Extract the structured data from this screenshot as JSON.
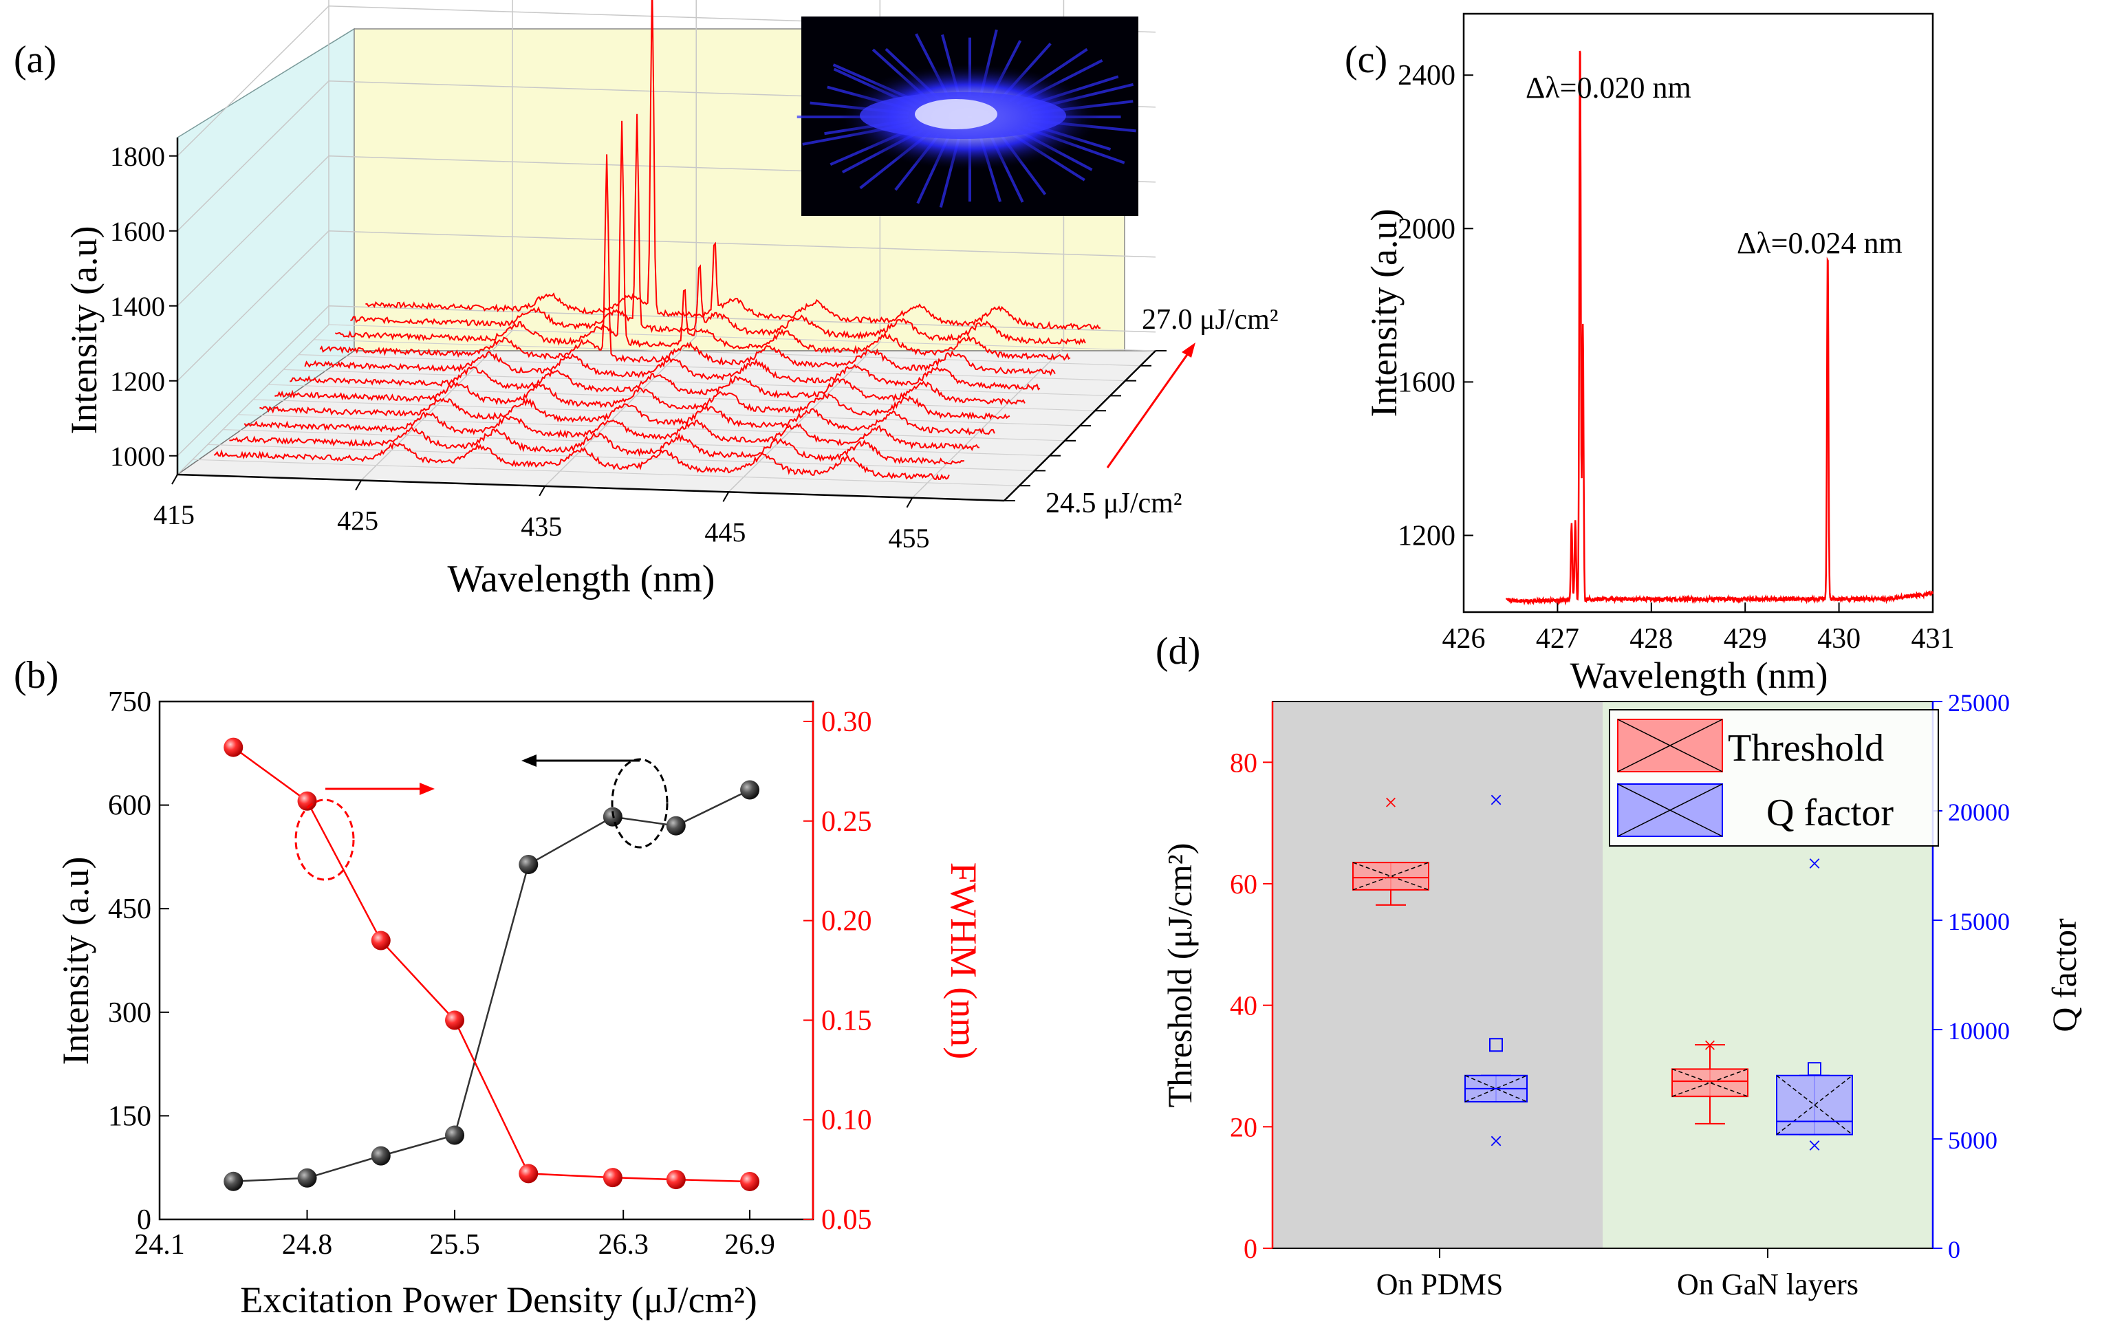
{
  "panel_labels": {
    "a": "(a)",
    "b": "(b)",
    "c": "(c)",
    "d": "(d)"
  },
  "colors": {
    "red": "#ff0000",
    "black": "#000000",
    "blue": "#0000ff",
    "panel_d_left_bg": "#d3d3d3",
    "panel_d_right_bg": "#e2f0dc",
    "back_wall": "#fafad2",
    "side_wall": "#dcf5f5"
  },
  "chart_data": [
    {
      "id": "a",
      "type": "line",
      "render": "3d-waterfall",
      "xlabel": "Wavelength (nm)",
      "ylabel": "Intensity (a.u)",
      "x_ticks": [
        "415",
        "425",
        "435",
        "445",
        "455"
      ],
      "xlim": [
        415,
        460
      ],
      "y_ticks": [
        "1000",
        "1200",
        "1400",
        "1600",
        "1800"
      ],
      "ylim": [
        950,
        1950
      ],
      "depth_label_low": "24.5 μJ/cm²",
      "depth_label_high": "27.0 μJ/cm²",
      "depth_range": [
        24.5,
        27.0
      ],
      "n_spectra": 11,
      "baseline": 1000,
      "broad_peaks_nm": [
        427,
        431.5,
        437,
        441.5,
        447,
        451.5
      ],
      "peaks": [
        {
          "series": 7,
          "x": 432.6,
          "y": 1530
        },
        {
          "series": 8,
          "x": 432.6,
          "y": 1590
        },
        {
          "series": 9,
          "x": 432.6,
          "y": 1560
        },
        {
          "series": 10,
          "x": 432.6,
          "y": 1870
        },
        {
          "series": 8,
          "x": 436.0,
          "y": 1150
        },
        {
          "series": 9,
          "x": 436.0,
          "y": 1180
        },
        {
          "series": 10,
          "x": 436.0,
          "y": 1200
        }
      ],
      "inset": "microscope image of blue-emitting microcrystal"
    },
    {
      "id": "b",
      "type": "scatter",
      "xlabel": "Excitation Power Density (μJ/cm²)",
      "ylabel_left": "Intensity (a.u)",
      "ylabel_right": "FWHM (nm)",
      "x_ticks": [
        "24.1",
        "24.8",
        "25.5",
        "26.3",
        "26.9"
      ],
      "xlim": [
        24.1,
        27.2
      ],
      "y_left_ticks": [
        "0",
        "150",
        "300",
        "450",
        "600",
        "750"
      ],
      "ylim_left": [
        0,
        750
      ],
      "y_right_ticks": [
        "0.05",
        "0.10",
        "0.15",
        "0.20",
        "0.25",
        "0.30"
      ],
      "ylim_right": [
        0.05,
        0.31
      ],
      "series": [
        {
          "axis": "left",
          "color": "#000000",
          "x": [
            24.45,
            24.8,
            25.15,
            25.5,
            25.85,
            26.25,
            26.55,
            26.9
          ],
          "values": [
            55,
            60,
            92,
            122,
            514,
            583,
            570,
            622
          ]
        },
        {
          "axis": "right",
          "color": "#ff0000",
          "x": [
            24.45,
            24.8,
            25.15,
            25.5,
            25.85,
            26.25,
            26.55,
            26.9
          ],
          "values": [
            0.287,
            0.26,
            0.19,
            0.15,
            0.073,
            0.071,
            0.07,
            0.069
          ]
        }
      ]
    },
    {
      "id": "c",
      "type": "line",
      "xlabel": "Wavelength (nm)",
      "ylabel": "Intensity (a.u)",
      "x_ticks": [
        "426",
        "427",
        "428",
        "429",
        "430",
        "431"
      ],
      "xlim": [
        426,
        431
      ],
      "y_ticks": [
        "1200",
        "1600",
        "2000",
        "2400"
      ],
      "ylim": [
        1000,
        2560
      ],
      "baseline": 1030,
      "peaks": [
        {
          "x": 427.15,
          "y": 1230
        },
        {
          "x": 427.19,
          "y": 1240
        },
        {
          "x": 427.24,
          "y": 2510
        },
        {
          "x": 427.27,
          "y": 1750
        },
        {
          "x": 429.88,
          "y": 1940
        }
      ],
      "annotations": [
        "Δλ=0.020 nm",
        "Δλ=0.024 nm"
      ]
    },
    {
      "id": "d",
      "type": "box",
      "categories": [
        "On PDMS",
        "On GaN layers"
      ],
      "ylabel_left": "Threshold (μJ/cm²)",
      "ylabel_right": "Q factor",
      "y_left_ticks": [
        "0",
        "20",
        "40",
        "60",
        "80"
      ],
      "ylim_left": [
        0,
        90
      ],
      "y_right_ticks": [
        "0",
        "5000",
        "10000",
        "15000",
        "20000",
        "25000"
      ],
      "ylim_right": [
        0,
        25000
      ],
      "legend": [
        "Threshold",
        "Q factor"
      ],
      "legend_position": "top-right",
      "series": [
        {
          "name": "Threshold",
          "axis": "left",
          "color": "#ff0000",
          "boxes": [
            {
              "q1": 59,
              "median": 61,
              "q3": 63.5,
              "whisker_low": 56.5,
              "whisker_high": 63.5,
              "mean": 61,
              "outlier": 73.5
            },
            {
              "q1": 25,
              "median": 27.5,
              "q3": 29.5,
              "whisker_low": 20.5,
              "whisker_high": 33.5,
              "mean": 28,
              "outlier": 33.5
            }
          ]
        },
        {
          "name": "Q factor",
          "axis": "right",
          "color": "#0000ff",
          "boxes": [
            {
              "q1": 6700,
              "median": 7300,
              "q3": 7900,
              "whisker_low": 6700,
              "whisker_high": 7900,
              "mean": 9300,
              "min_marker": 4900,
              "max_marker": 20500
            },
            {
              "q1": 5200,
              "median": 5800,
              "q3": 7900,
              "whisker_low": 5200,
              "whisker_high": 7900,
              "mean": 8200,
              "min_marker": 4700,
              "max_marker": 17600
            }
          ]
        }
      ]
    }
  ]
}
